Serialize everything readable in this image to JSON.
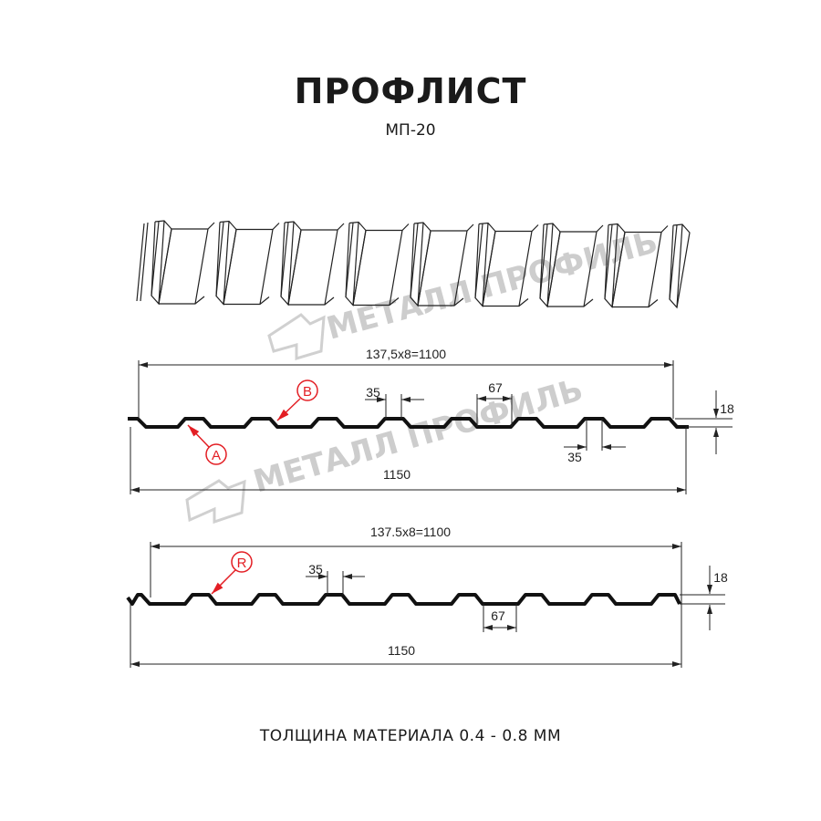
{
  "header": {
    "title": "ПРОФЛИСТ",
    "subtitle": "МП-20"
  },
  "watermark": {
    "text": "МЕТАЛЛ ПРОФИЛЬ"
  },
  "profile_a_b": {
    "pitch_dim": "137,5x8=1100",
    "total_dim": "1150",
    "top_width_dim": "35",
    "bottom_width_dim": "67",
    "bottom_gap_dim": "35",
    "height_dim": "18",
    "marker_a": "A",
    "marker_b": "B"
  },
  "profile_r": {
    "pitch_dim": "137.5x8=1100",
    "total_dim": "1150",
    "top_width_dim": "35",
    "bottom_width_dim": "67",
    "height_dim": "18",
    "marker_r": "R"
  },
  "footer": {
    "thickness": "ТОЛЩИНА МАТЕРИАЛА 0.4 - 0.8 ММ"
  },
  "colors": {
    "marker": "#e31e24",
    "profile": "#111111",
    "watermark": "#bdbdbd"
  }
}
